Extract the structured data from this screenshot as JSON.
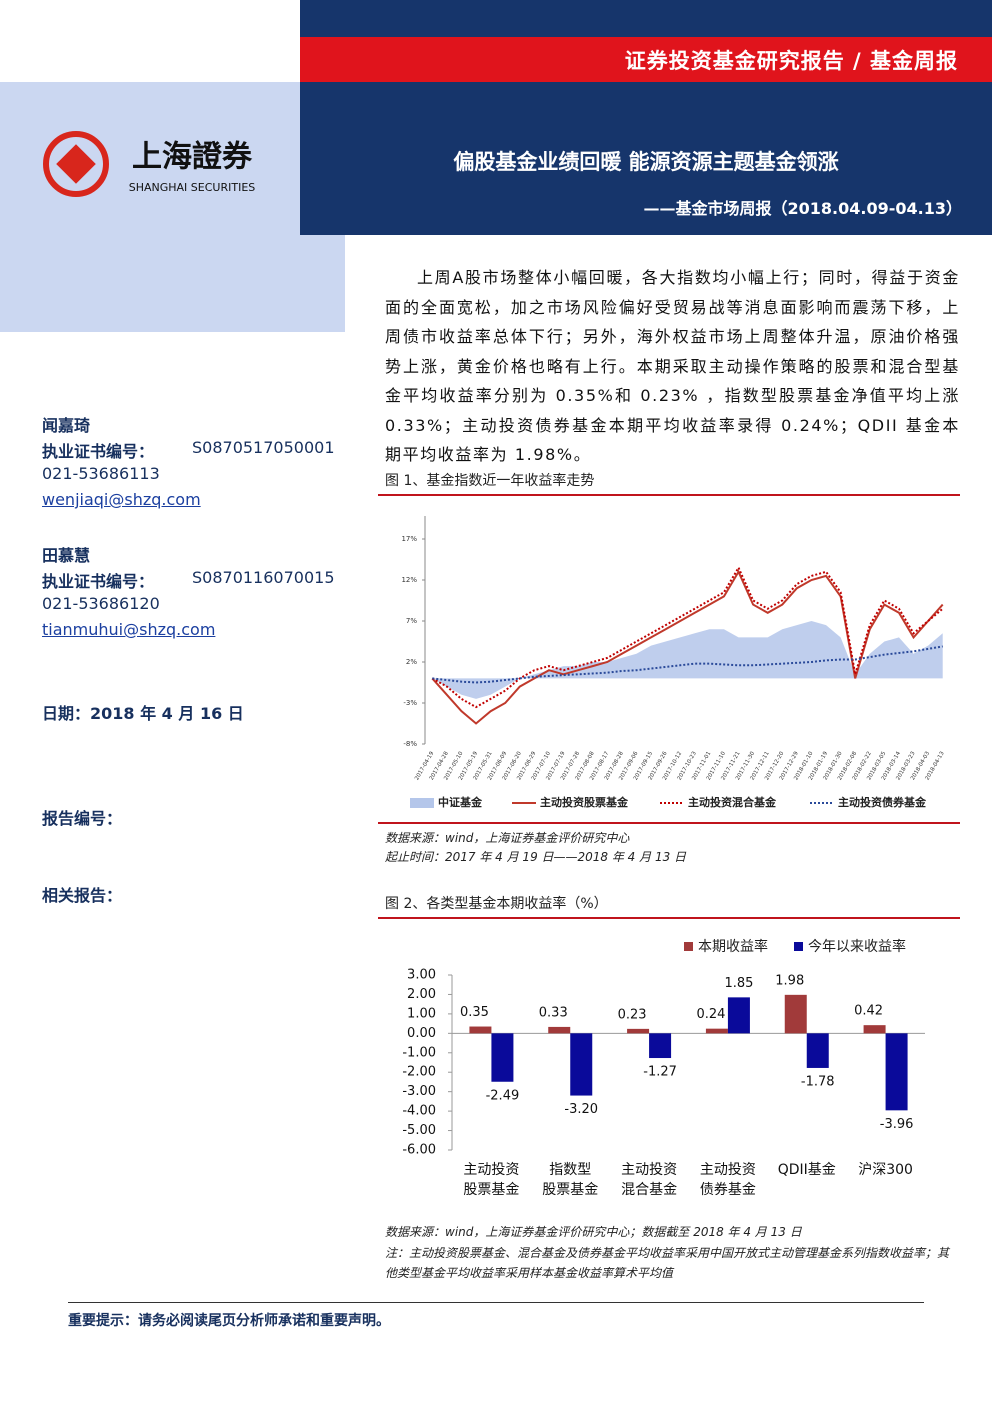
{
  "header": {
    "report_type": "证券投资基金研究报告 / 基金周报",
    "logo_cn": "上海證券",
    "logo_en": "SHANGHAI SECURITIES",
    "title": "偏股基金业绩回暖 能源资源主题基金领涨",
    "subtitle": "——基金市场周报（2018.04.09-04.13）"
  },
  "authors": [
    {
      "name": "闻嘉琦",
      "cert_label": "执业证书编号：",
      "cert": "S0870517050001",
      "phone": "021-53686113",
      "email": "wenjiaqi@shzq.com"
    },
    {
      "name": "田慕慧",
      "cert_label": "执业证书编号：",
      "cert": "S0870116070015",
      "phone": "021-53686120",
      "email": "tianmuhui@shzq.com"
    }
  ],
  "date": "日期：2018 年 4 月 16 日",
  "report_no": "报告编号：",
  "related": "相关报告：",
  "summary": "上周A股市场整体小幅回暖，各大指数均小幅上行；同时，得益于资金面的全面宽松，加之市场风险偏好受贸易战等消息面影响而震荡下移，上周债市收益率总体下行；另外，海外权益市场上周整体升温，原油价格强势上涨，黄金价格也略有上行。本期采取主动操作策略的股票和混合型基金平均收益率分别为 0.35%和 0.23% ，指数型股票基金净值平均上涨 0.33%；主动投资债券基金本期平均收益率录得 0.24%；QDII 基金本期平均收益率为 1.98%。",
  "chart_data": [
    {
      "type": "line",
      "title": "图 1、基金指数近一年收益率走势",
      "categories": [
        "2017-04-19",
        "2017-04-28",
        "2017-05-10",
        "2017-05-19",
        "2017-05-31",
        "2017-06-09",
        "2017-06-20",
        "2017-06-29",
        "2017-07-10",
        "2017-07-19",
        "2017-07-28",
        "2017-08-08",
        "2017-08-17",
        "2017-08-28",
        "2017-09-06",
        "2017-09-15",
        "2017-09-26",
        "2017-10-12",
        "2017-10-23",
        "2017-11-01",
        "2017-11-10",
        "2017-11-21",
        "2017-11-30",
        "2017-12-11",
        "2017-12-20",
        "2017-12-29",
        "2018-01-10",
        "2018-01-19",
        "2018-01-30",
        "2018-02-08",
        "2018-02-22",
        "2018-03-05",
        "2018-03-14",
        "2018-03-23",
        "2018-04-03",
        "2018-04-13"
      ],
      "ylim": [
        -8,
        17
      ],
      "yticks": [
        {
          "value": -8,
          "label": "-8%"
        },
        {
          "value": -3,
          "label": "-3%"
        },
        {
          "value": 2,
          "label": "2%"
        },
        {
          "value": 7,
          "label": "7%"
        },
        {
          "value": 12,
          "label": "12%"
        },
        {
          "value": 17,
          "label": "17%"
        }
      ],
      "series": [
        {
          "name": "中证基金",
          "color": "#b4c6ea",
          "style": "area",
          "values": [
            0,
            -1,
            -2,
            -2.5,
            -2,
            -1,
            0,
            0.5,
            1,
            1.5,
            1.5,
            2,
            2,
            2.5,
            3,
            4,
            4.5,
            5,
            5.5,
            6,
            6,
            5,
            5,
            5,
            6,
            6.5,
            7,
            6.5,
            5,
            0.5,
            3,
            4.5,
            5,
            3,
            4,
            5.5
          ]
        },
        {
          "name": "主动投资股票基金",
          "color": "#c0392b",
          "style": "solid",
          "values": [
            0,
            -2,
            -4,
            -5.5,
            -4,
            -3,
            -1,
            0,
            1,
            0.5,
            1,
            1.5,
            2,
            3,
            4,
            5,
            6,
            7,
            8,
            9,
            10,
            13,
            9,
            8,
            9,
            11,
            12,
            12.5,
            10,
            0,
            6,
            9,
            8,
            5,
            7,
            9
          ]
        },
        {
          "name": "主动投资混合基金",
          "color": "#c00000",
          "style": "dotted",
          "values": [
            0,
            -1,
            -2.5,
            -3.5,
            -2.5,
            -1.5,
            0,
            1,
            1.5,
            1,
            1.5,
            2,
            2.5,
            3.5,
            4.5,
            5.5,
            6.5,
            7.5,
            8.5,
            9.5,
            10.5,
            13.5,
            9.5,
            8.5,
            9.5,
            11.5,
            12.5,
            13,
            10.5,
            0.5,
            6.5,
            9.5,
            8.5,
            5.5,
            7,
            8.5
          ]
        },
        {
          "name": "主动投资债券基金",
          "color": "#2a4a9a",
          "style": "dotted",
          "values": [
            0,
            -0.2,
            -0.4,
            -0.5,
            -0.4,
            -0.2,
            0,
            0.2,
            0.3,
            0.4,
            0.5,
            0.6,
            0.7,
            0.9,
            1,
            1.2,
            1.4,
            1.6,
            1.8,
            1.8,
            1.7,
            1.6,
            1.6,
            1.7,
            1.8,
            1.9,
            2,
            2.2,
            2.3,
            2.3,
            2.6,
            2.9,
            3.1,
            3.3,
            3.6,
            3.9
          ]
        }
      ],
      "notes": [
        "数据来源：wind，上海证券基金评价研究中心",
        "起止时间：2017 年 4 月 19 日——2018 年 4 月 13 日"
      ]
    },
    {
      "type": "bar",
      "title": "图 2、各类型基金本期收益率（%）",
      "categories": [
        [
          "主动投资",
          "股票基金"
        ],
        [
          "指数型",
          "股票基金"
        ],
        [
          "主动投资",
          "混合基金"
        ],
        [
          "主动投资",
          "债券基金"
        ],
        [
          "QDII基金"
        ],
        [
          "沪深300"
        ]
      ],
      "ylim": [
        -6,
        3
      ],
      "yticks": [
        {
          "value": 3,
          "label": "3.00"
        },
        {
          "value": 2,
          "label": "2.00"
        },
        {
          "value": 1,
          "label": "1.00"
        },
        {
          "value": 0,
          "label": "0.00"
        },
        {
          "value": -1,
          "label": "-1.00"
        },
        {
          "value": -2,
          "label": "-2.00"
        },
        {
          "value": -3,
          "label": "-3.00"
        },
        {
          "value": -4,
          "label": "-4.00"
        },
        {
          "value": -5,
          "label": "-5.00"
        },
        {
          "value": -6,
          "label": "-6.00"
        }
      ],
      "series": [
        {
          "name": "本期收益率",
          "color": "#a13a3a",
          "values": [
            0.35,
            0.33,
            0.23,
            0.24,
            1.98,
            0.42
          ],
          "value_labels": [
            "0.35",
            "0.33",
            "0.23",
            "0.24",
            "1.98",
            "0.42"
          ]
        },
        {
          "name": "今年以来收益率",
          "color": "#0a0a9a",
          "values": [
            -2.49,
            -3.2,
            -1.27,
            1.85,
            -1.78,
            -3.96
          ],
          "value_labels": [
            "-2.49",
            "-3.20",
            "-1.27",
            "1.85",
            "-1.78",
            "-3.96"
          ]
        }
      ],
      "notes": [
        "数据来源：wind，上海证券基金评价研究中心；数据截至 2018 年 4 月 13 日",
        "注：主动投资股票基金、混合基金及债券基金平均收益率采用中国开放式主动管理基金系列指数收益率；其他类型基金平均收益率采用样本基金收益率算术平均值"
      ]
    }
  ],
  "footer": "重要提示：请务必阅读尾页分析师承诺和重要声明。"
}
